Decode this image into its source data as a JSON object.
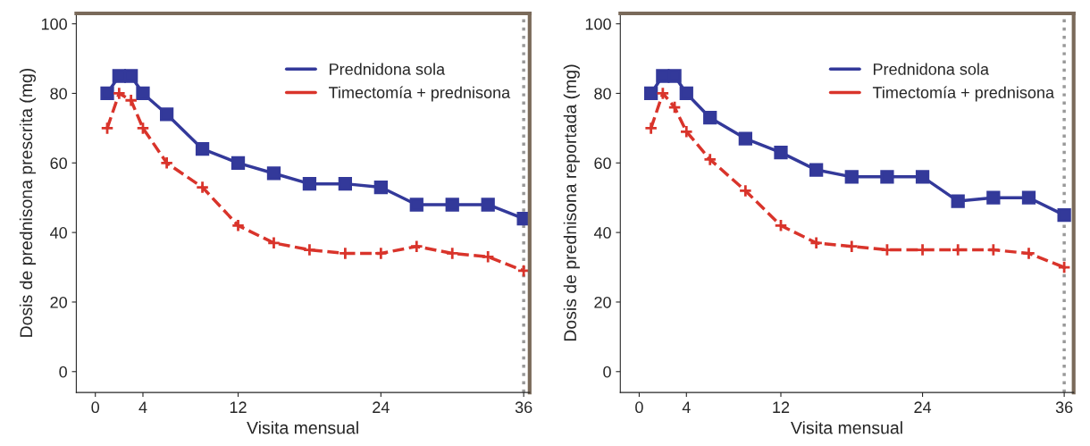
{
  "chart_data": [
    {
      "type": "line",
      "xlabel": "Visita mensual",
      "ylabel": "Dosis de prednisona prescrita (mg)",
      "x": [
        1,
        2,
        3,
        4,
        6,
        9,
        12,
        15,
        18,
        21,
        24,
        27,
        30,
        33,
        36
      ],
      "series": [
        {
          "name": "Prednidona sola",
          "color": "#33399a",
          "marker": "square",
          "line_style": "solid",
          "values": [
            80,
            85,
            85,
            80,
            74,
            64,
            60,
            57,
            54,
            54,
            53,
            48,
            48,
            48,
            44
          ]
        },
        {
          "name": "Timectomía + prednisona",
          "color": "#d9342b",
          "marker": "cross",
          "line_style": "dashed",
          "values": [
            70,
            80,
            78,
            70,
            60,
            53,
            42,
            37,
            35,
            34,
            34,
            36,
            34,
            33,
            29
          ]
        }
      ],
      "xlim": [
        -1.6,
        36.5
      ],
      "ylim": [
        -6,
        103
      ],
      "xticks": [
        0,
        4,
        12,
        24,
        36
      ],
      "yticks": [
        0,
        20,
        40,
        60,
        80,
        100
      ],
      "ref_lines": [
        {
          "axis": "x",
          "value": 36,
          "color": "#999999",
          "line_style": "dotted"
        }
      ],
      "legend": "top right",
      "grid": false
    },
    {
      "type": "line",
      "xlabel": "Visita mensual",
      "ylabel": "Dosis de prednisona reportada (mg)",
      "x": [
        1,
        2,
        3,
        4,
        6,
        9,
        12,
        15,
        18,
        21,
        24,
        27,
        30,
        33,
        36
      ],
      "series": [
        {
          "name": "Prednidona sola",
          "color": "#33399a",
          "marker": "square",
          "line_style": "solid",
          "values": [
            80,
            85,
            85,
            80,
            73,
            67,
            63,
            58,
            56,
            56,
            56,
            49,
            50,
            50,
            45
          ]
        },
        {
          "name": "Timectomía + prednisona",
          "color": "#d9342b",
          "marker": "cross",
          "line_style": "dashed",
          "values": [
            70,
            80,
            76,
            69,
            61,
            52,
            42,
            37,
            36,
            35,
            35,
            35,
            35,
            34,
            30
          ]
        }
      ],
      "xlim": [
        -1.6,
        36.8
      ],
      "ylim": [
        -6,
        103
      ],
      "xticks": [
        0,
        4,
        12,
        24,
        36
      ],
      "yticks": [
        0,
        20,
        40,
        60,
        80,
        100
      ],
      "ref_lines": [
        {
          "axis": "x",
          "value": 36,
          "color": "#999999",
          "line_style": "dotted"
        }
      ],
      "legend": "top right",
      "grid": false
    }
  ]
}
